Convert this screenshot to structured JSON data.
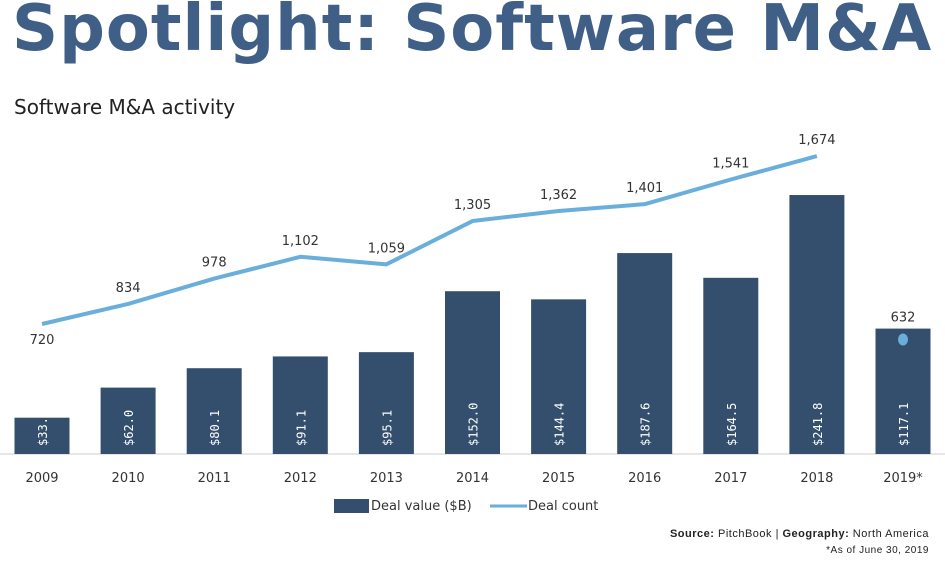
{
  "header": {
    "title": "Spotlight: Software M&A",
    "subtitle": "Software M&A activity"
  },
  "chart_data": {
    "type": "bar+line",
    "categories": [
      "2009",
      "2010",
      "2011",
      "2012",
      "2013",
      "2014",
      "2015",
      "2016",
      "2017",
      "2018",
      "2019*"
    ],
    "series": [
      {
        "name": "Deal value ($B)",
        "type": "bar",
        "color": "#344f6d",
        "values": [
          33.9,
          62.0,
          80.1,
          91.1,
          95.1,
          152.0,
          144.4,
          187.6,
          164.5,
          241.8,
          117.1
        ],
        "labels": [
          "$33.9",
          "$62.0",
          "$80.1",
          "$91.1",
          "$95.1",
          "$152.0",
          "$144.4",
          "$187.6",
          "$164.5",
          "$241.8",
          "$117.1"
        ]
      },
      {
        "name": "Deal count",
        "type": "line",
        "color": "#6aaedb",
        "values": [
          720,
          834,
          978,
          1102,
          1059,
          1305,
          1362,
          1401,
          1541,
          1674,
          632
        ],
        "labels": [
          "720",
          "834",
          "978",
          "1,102",
          "1,059",
          "1,305",
          "1,362",
          "1,401",
          "1,541",
          "1,674",
          "632"
        ]
      }
    ],
    "grid": false,
    "legend": "bottom"
  },
  "footer": {
    "source_label": "Source:",
    "source": "PitchBook",
    "geo_label": "Geography:",
    "geo": "North America",
    "note": "*As of June 30, 2019"
  }
}
